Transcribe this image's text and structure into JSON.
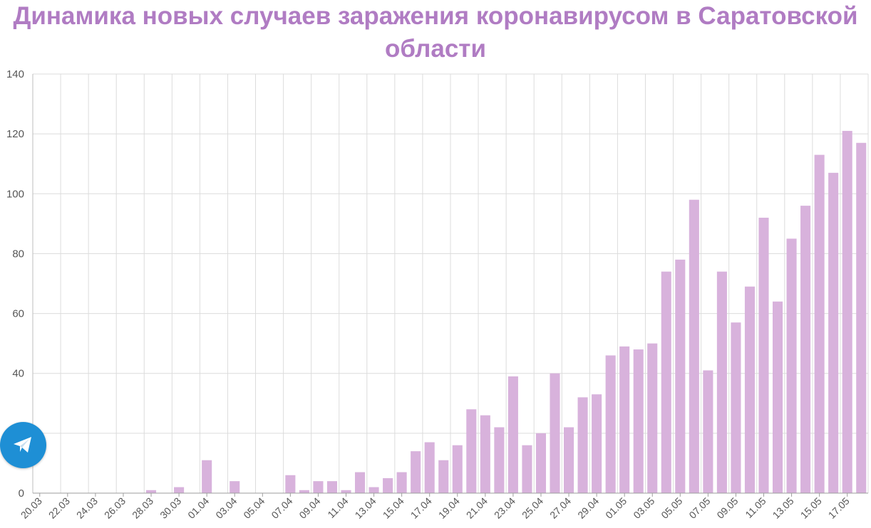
{
  "title": {
    "line1": "Динамика новых случаев заражения коронавирусом в Саратовской",
    "line2": "области"
  },
  "colors": {
    "title": "#b07cc3",
    "bar": "#d8b2dc",
    "grid": "#dcdcdc",
    "axis_text": "#555555",
    "telegram": "#1e8fd5"
  },
  "telegram_button": {
    "icon": "paper-plane-icon"
  },
  "chart_data": {
    "type": "bar",
    "ylim": [
      0,
      140
    ],
    "y_ticks": [
      0,
      20,
      40,
      60,
      80,
      100,
      120,
      140
    ],
    "y_tick_labels": [
      "0",
      "",
      "40",
      "60",
      "80",
      "100",
      "120",
      "140"
    ],
    "grid": true,
    "categories": [
      "20.03",
      "21.03",
      "22.03",
      "23.03",
      "24.03",
      "25.03",
      "26.03",
      "27.03",
      "28.03",
      "29.03",
      "30.03",
      "31.03",
      "01.04",
      "02.04",
      "03.04",
      "04.04",
      "05.04",
      "06.04",
      "07.04",
      "08.04",
      "09.04",
      "10.04",
      "11.04",
      "12.04",
      "13.04",
      "14.04",
      "15.04",
      "16.04",
      "17.04",
      "18.04",
      "19.04",
      "20.04",
      "21.04",
      "22.04",
      "23.04",
      "24.04",
      "25.04",
      "26.04",
      "27.04",
      "28.04",
      "29.04",
      "30.04",
      "01.05",
      "02.05",
      "03.05",
      "04.05",
      "05.05",
      "06.05",
      "07.05",
      "08.05",
      "09.05",
      "10.05",
      "11.05",
      "12.05",
      "13.05",
      "14.05",
      "15.05",
      "16.05",
      "17.05",
      "18.05"
    ],
    "x_tick_labels": [
      "20.03",
      "22.03",
      "24.03",
      "26.03",
      "28.03",
      "30.03",
      "01.04",
      "03.04",
      "05.04",
      "07.04",
      "09.04",
      "11.04",
      "13.04",
      "15.04",
      "17.04",
      "19.04",
      "21.04",
      "23.04",
      "25.04",
      "27.04",
      "29.04",
      "01.05",
      "03.05",
      "05.05",
      "07.05",
      "09.05",
      "11.05",
      "13.05",
      "15.05",
      "17.05"
    ],
    "values": [
      0,
      0,
      0,
      0,
      0,
      0,
      0,
      0,
      1,
      0,
      2,
      0,
      11,
      0,
      4,
      0,
      0,
      0,
      6,
      1,
      4,
      4,
      1,
      7,
      2,
      5,
      7,
      14,
      17,
      11,
      16,
      28,
      26,
      22,
      39,
      16,
      20,
      40,
      22,
      32,
      33,
      46,
      49,
      48,
      50,
      74,
      78,
      98,
      41,
      74,
      57,
      69,
      92,
      64,
      85,
      96,
      113,
      107,
      121,
      117
    ]
  }
}
